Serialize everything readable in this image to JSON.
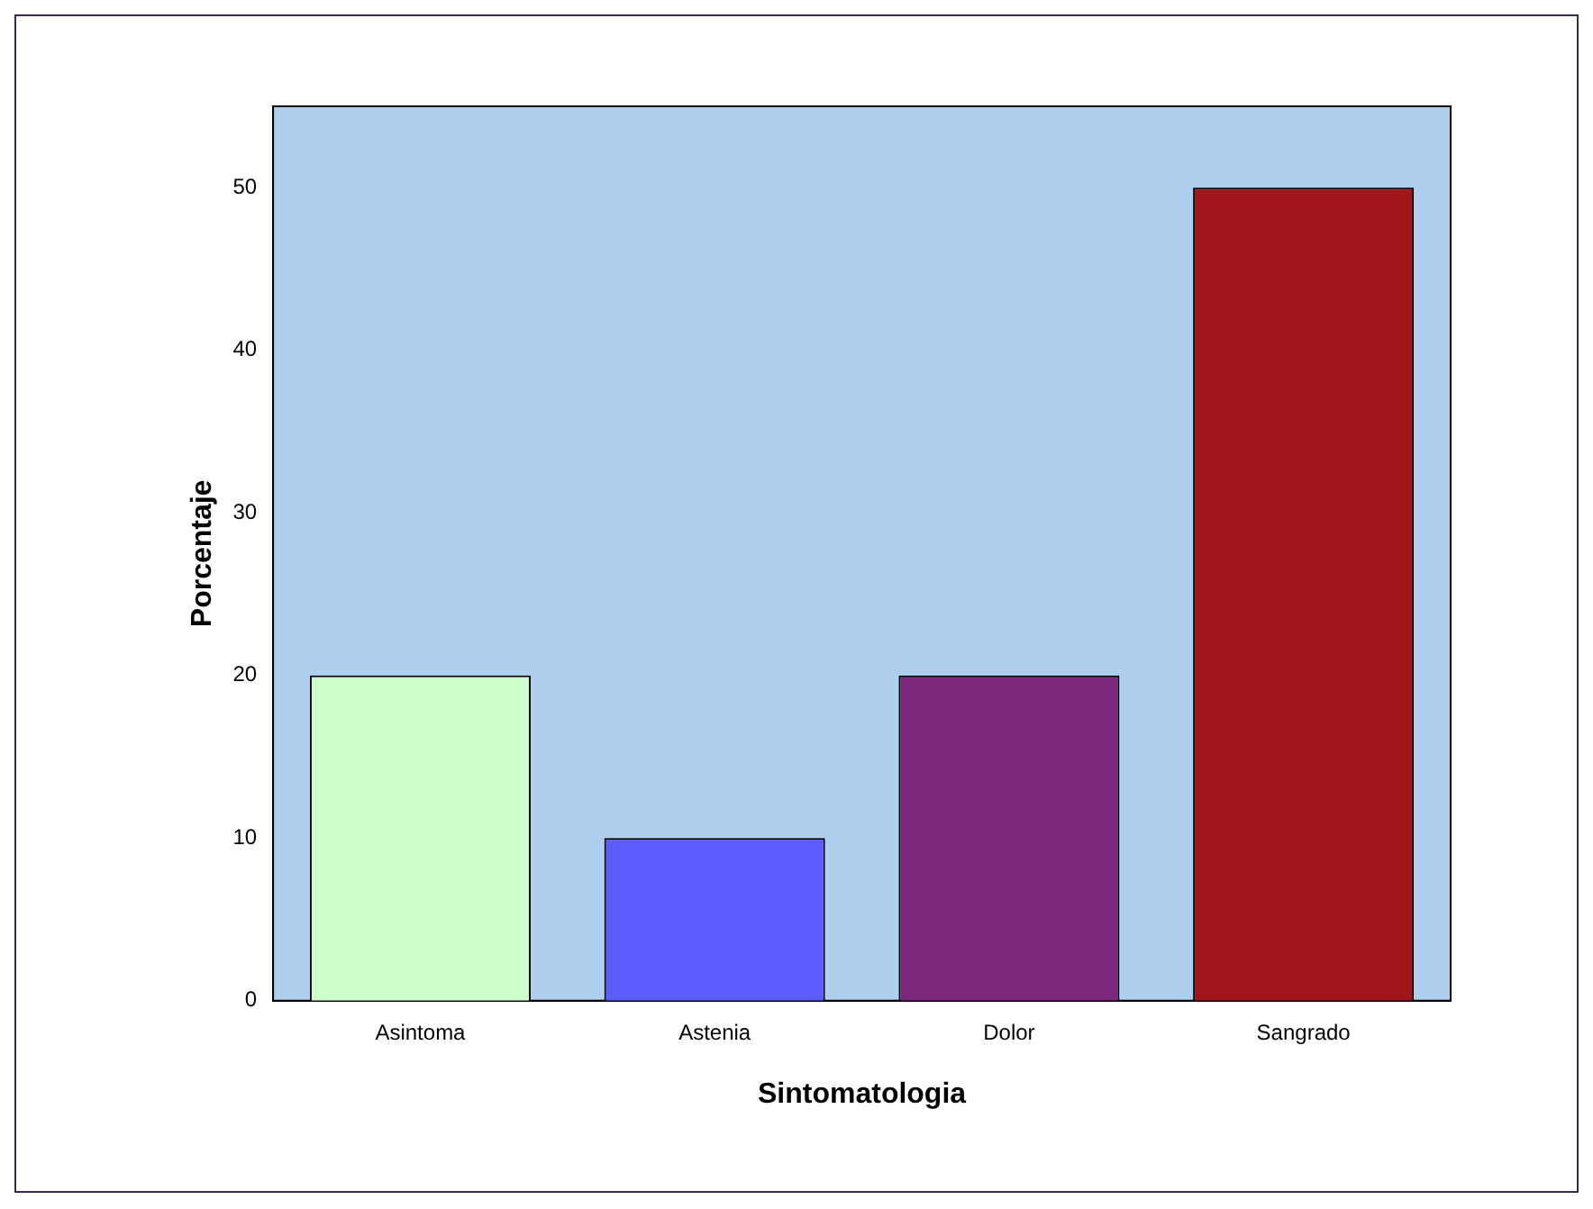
{
  "chart_data": {
    "type": "bar",
    "xlabel": "Sintomatologia",
    "ylabel": "Porcentaje",
    "categories": [
      "Asintoma",
      "Astenia",
      "Dolor",
      "Sangrado"
    ],
    "values": [
      20,
      10,
      20,
      50
    ],
    "colors": [
      "#ccffcc",
      "#5c5cff",
      "#7b277b",
      "#a0161a"
    ],
    "ylim": [
      0,
      55
    ],
    "yticks": [
      0,
      10,
      20,
      30,
      40,
      50
    ],
    "grid": false,
    "legend": false
  }
}
